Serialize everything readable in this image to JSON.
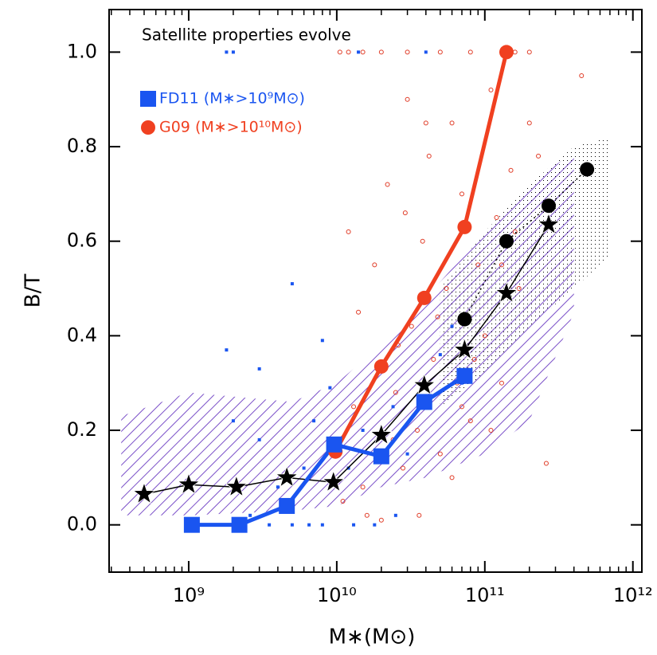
{
  "chart_data": {
    "type": "line",
    "annotation": "Satellite properties evolve",
    "xlabel": "M∗(M⊙)",
    "ylabel": "B/T",
    "xscale": "log",
    "xlim": [
      290000000,
      1150000000000
    ],
    "ylim": [
      -0.1,
      1.09
    ],
    "xticks": [
      {
        "value": 1000000000,
        "label": "10⁹"
      },
      {
        "value": 10000000000,
        "label": "10¹⁰"
      },
      {
        "value": 100000000000,
        "label": "10¹¹"
      },
      {
        "value": 1000000000000,
        "label": "10¹²"
      }
    ],
    "yticks": [
      {
        "value": 0,
        "label": "0.0"
      },
      {
        "value": 0.2,
        "label": "0.2"
      },
      {
        "value": 0.4,
        "label": "0.4"
      },
      {
        "value": 0.6,
        "label": "0.6"
      },
      {
        "value": 0.8,
        "label": "0.8"
      },
      {
        "value": 1,
        "label": "1.0"
      }
    ],
    "legend": "upper left",
    "bands": [
      {
        "color": "#7a4fc8",
        "pattern": "hatch",
        "x": [
          350000000,
          1000000000,
          5000000000,
          10000000000,
          20000000000,
          40000000000,
          100000000000,
          200000000000,
          400000000000
        ],
        "lower": [
          0.02,
          0.02,
          0.03,
          0.04,
          0.08,
          0.1,
          0.15,
          0.22,
          0.45
        ],
        "upper": [
          0.23,
          0.28,
          0.26,
          0.3,
          0.38,
          0.48,
          0.62,
          0.72,
          0.79
        ]
      },
      {
        "color": "#000000",
        "pattern": "dots",
        "x": [
          50000000000,
          100000000000,
          200000000000,
          400000000000,
          700000000000
        ],
        "lower": [
          0.25,
          0.32,
          0.42,
          0.5,
          0.57
        ],
        "upper": [
          0.5,
          0.62,
          0.72,
          0.8,
          0.82
        ]
      }
    ],
    "points": [
      {
        "color": "#e03a25",
        "marker": "open-circle",
        "x": [
          10500000000,
          12000000000,
          15000000000,
          20000000000,
          30000000000,
          50000000000,
          80000000000,
          160000000000,
          200000000000,
          12000000000,
          14000000000,
          13000000000,
          15000000000,
          18000000000,
          22000000000,
          25000000000,
          28000000000,
          30000000000,
          32000000000,
          35000000000,
          38000000000,
          42000000000,
          45000000000,
          50000000000,
          55000000000,
          60000000000,
          65000000000,
          70000000000,
          80000000000,
          90000000000,
          100000000000,
          110000000000,
          120000000000,
          130000000000,
          150000000000,
          170000000000,
          200000000000,
          230000000000,
          260000000000,
          450000000000,
          11000000000,
          16000000000,
          20000000000,
          24000000000,
          26000000000,
          29000000000,
          36000000000,
          40000000000,
          48000000000,
          60000000000,
          70000000000,
          85000000000,
          110000000000,
          130000000000,
          160000000000
        ],
        "values": [
          1.0,
          1.0,
          1.0,
          1.0,
          1.0,
          1.0,
          1.0,
          1.0,
          1.0,
          0.62,
          0.45,
          0.25,
          0.08,
          0.55,
          0.72,
          0.28,
          0.12,
          0.9,
          0.42,
          0.2,
          0.6,
          0.78,
          0.35,
          0.15,
          0.5,
          0.85,
          0.3,
          0.7,
          0.22,
          0.55,
          0.4,
          0.92,
          0.65,
          0.3,
          0.75,
          0.5,
          0.85,
          0.78,
          0.13,
          0.95,
          0.05,
          0.02,
          0.01,
          0.18,
          0.38,
          0.66,
          0.02,
          0.85,
          0.44,
          0.1,
          0.25,
          0.35,
          0.2,
          0.55,
          0.62
        ]
      },
      {
        "color": "#1a55f0",
        "marker": "small-square",
        "x": [
          1800000000,
          2000000000,
          1800000000,
          3000000000,
          5000000000,
          8000000000,
          2000000000,
          3000000000,
          7000000000,
          9000000000,
          6000000000,
          4000000000,
          1700000000,
          2600000000,
          3500000000,
          5000000000,
          6500000000,
          8000000000,
          13000000000,
          18000000000,
          25000000000,
          12000000000,
          15000000000,
          24000000000,
          30000000000,
          40000000000,
          50000000000,
          60000000000,
          70000000000,
          14000000000,
          40000000000,
          135000000000
        ],
        "values": [
          1.0,
          1.0,
          0.37,
          0.33,
          0.51,
          0.39,
          0.22,
          0.18,
          0.22,
          0.29,
          0.12,
          0.08,
          0.0,
          0.02,
          0.0,
          0.0,
          0.0,
          0.0,
          0.0,
          0.0,
          0.02,
          0.12,
          0.2,
          0.25,
          0.15,
          0.48,
          0.36,
          0.42,
          0.3,
          1.0,
          1.0,
          1.0
        ]
      }
    ],
    "series": [
      {
        "name": "FD11 (M∗>10⁹M⊙)",
        "color": "#1a55f0",
        "marker": "square",
        "linewidth": 5,
        "x": [
          1050000000,
          2200000000,
          4600000000,
          9600000000,
          20000000000,
          39000000000,
          73000000000
        ],
        "values": [
          0.0,
          0.0,
          0.04,
          0.17,
          0.145,
          0.26,
          0.315
        ]
      },
      {
        "name": "G09 (M∗>10¹⁰M⊙)",
        "color": "#f04020",
        "marker": "circle",
        "linewidth": 5,
        "x": [
          9800000000,
          20000000000,
          39000000000,
          73000000000,
          140000000000
        ],
        "values": [
          0.155,
          0.335,
          0.48,
          0.63,
          1.0
        ]
      },
      {
        "color": "#000000",
        "marker": "star",
        "linewidth": 1.5,
        "x": [
          500000000,
          1000000000,
          2100000000,
          4600000000,
          9500000000,
          20000000000,
          39000000000,
          73000000000,
          140000000000,
          270000000000
        ],
        "values": [
          0.065,
          0.085,
          0.08,
          0.1,
          0.09,
          0.19,
          0.295,
          0.37,
          0.49,
          0.635
        ]
      },
      {
        "color": "#000000",
        "marker": "circle",
        "linestyle": "dotted",
        "linewidth": 1.5,
        "x": [
          73000000000,
          140000000000,
          270000000000,
          490000000000
        ],
        "values": [
          0.435,
          0.6,
          0.675,
          0.752
        ]
      }
    ]
  }
}
